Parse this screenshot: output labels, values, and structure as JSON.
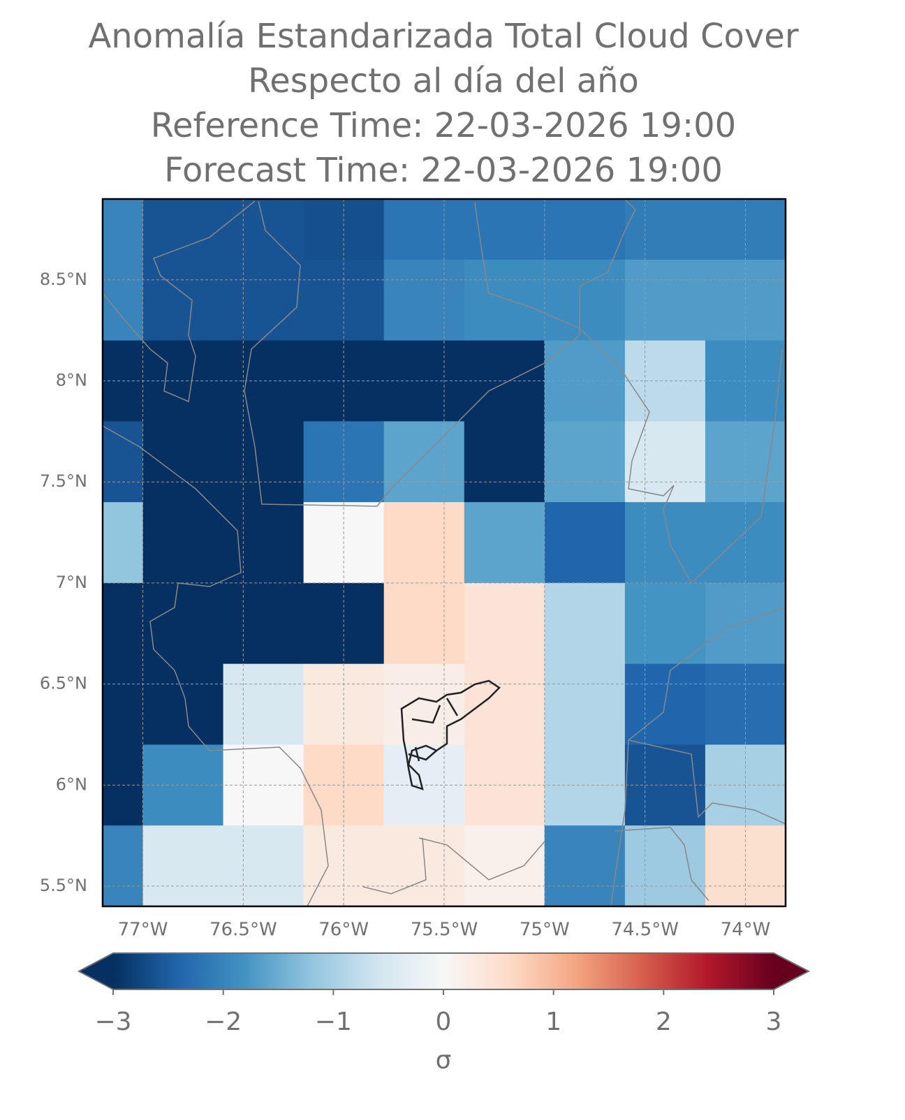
{
  "chart_data": {
    "type": "heatmap",
    "title": [
      "Anomalía Estandarizada Total Cloud Cover",
      "Respecto al día del año",
      "Reference Time: 22-03-2026 19:00",
      "Forecast Time: 22-03-2026 19:00"
    ],
    "xlim": [
      -77.2,
      -73.8
    ],
    "ylim": [
      5.4,
      8.9
    ],
    "xticks": [
      {
        "value": -77,
        "label": "77°W"
      },
      {
        "value": -76.5,
        "label": "76.5°W"
      },
      {
        "value": -76,
        "label": "76°W"
      },
      {
        "value": -75.5,
        "label": "75.5°W"
      },
      {
        "value": -75,
        "label": "75°W"
      },
      {
        "value": -74.5,
        "label": "74.5°W"
      },
      {
        "value": -74,
        "label": "74°W"
      }
    ],
    "yticks": [
      {
        "value": 8.5,
        "label": "8.5°N"
      },
      {
        "value": 8,
        "label": "8°N"
      },
      {
        "value": 7.5,
        "label": "7.5°N"
      },
      {
        "value": 7,
        "label": "7°N"
      },
      {
        "value": 6.5,
        "label": "6.5°N"
      },
      {
        "value": 6,
        "label": "6°N"
      },
      {
        "value": 5.5,
        "label": "5.5°N"
      }
    ],
    "grid": true,
    "lon_edges": [
      -77.4,
      -77.0,
      -76.6,
      -76.2,
      -75.8,
      -75.4,
      -75.0,
      -74.6,
      -74.2,
      -73.8
    ],
    "lat_edges": [
      9.0,
      8.6,
      8.2,
      7.8,
      7.4,
      7.0,
      6.6,
      6.2,
      5.8,
      5.4
    ],
    "values": [
      [
        -2.0,
        -2.6,
        -2.6,
        -2.65,
        -2.2,
        -2.2,
        -2.2,
        -2.1,
        -2.1
      ],
      [
        -2.0,
        -2.6,
        -2.6,
        -2.6,
        -2.0,
        -1.9,
        -1.9,
        -1.7,
        -1.7
      ],
      [
        -3.0,
        -3.0,
        -3.0,
        -3.0,
        -3.0,
        -3.0,
        -1.7,
        -0.8,
        -1.9
      ],
      [
        -2.6,
        -3.0,
        -3.0,
        -2.2,
        -1.6,
        -3.0,
        -1.6,
        -0.5,
        -1.6
      ],
      [
        -1.2,
        -3.0,
        -3.0,
        0.0,
        0.6,
        -1.6,
        -2.4,
        -1.9,
        -1.9
      ],
      [
        -3.0,
        -3.0,
        -3.0,
        -3.0,
        0.6,
        0.4,
        -0.9,
        -1.8,
        -1.7
      ],
      [
        -3.0,
        -3.0,
        -0.5,
        0.3,
        0.2,
        0.4,
        -0.9,
        -2.4,
        -2.3
      ],
      [
        -3.0,
        -1.9,
        0.0,
        0.6,
        -0.3,
        0.4,
        -0.9,
        -2.6,
        -1.0
      ],
      [
        -2.0,
        -0.5,
        -0.5,
        0.3,
        0.3,
        0.15,
        -2.0,
        -1.1,
        0.5
      ]
    ],
    "colorbar": {
      "lim": [
        -3,
        3
      ],
      "ticks": [
        {
          "value": -3,
          "label": "−3"
        },
        {
          "value": -2,
          "label": "−2"
        },
        {
          "value": -1,
          "label": "−1"
        },
        0,
        1,
        2,
        3
      ],
      "label": "σ",
      "colors": [
        "#053061",
        "#2166ac",
        "#4393c3",
        "#92c5de",
        "#d1e5f0",
        "#f7f7f7",
        "#fddbc7",
        "#f4a582",
        "#d6604d",
        "#b2182b",
        "#67001f"
      ]
    }
  }
}
